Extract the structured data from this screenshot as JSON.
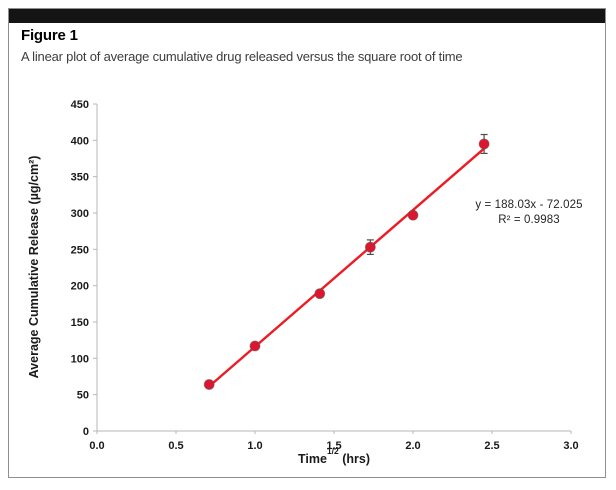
{
  "figure": {
    "label": "Figure 1",
    "caption": "A linear plot of average cumulative drug released versus the square root of time"
  },
  "chart_data": {
    "type": "scatter",
    "title": "",
    "x": [
      0.71,
      1.0,
      1.41,
      1.73,
      2.0,
      2.45
    ],
    "y": [
      64,
      117,
      189,
      253,
      297,
      395
    ],
    "y_errors": [
      0,
      0,
      0,
      10,
      0,
      13
    ],
    "series_name": "Average cumulative drug released",
    "trendline": {
      "slope": 188.03,
      "intercept": -72.025,
      "x_start": 0.7,
      "x_end": 2.46
    },
    "equation_line1": "y = 188.03x - 72.025",
    "equation_line2": "R² = 0.9983",
    "xlabel": {
      "pre": "Time",
      "sup": "1/2",
      "post": " (hrs)"
    },
    "ylabel": "Average Cumulative Release (µg/cm²)",
    "xlim": [
      0,
      3.0
    ],
    "ylim": [
      0,
      450
    ],
    "x_ticks": [
      "0.0",
      "0.5",
      "1.0",
      "1.5",
      "2.0",
      "2.5",
      "3.0"
    ],
    "y_ticks": [
      "0",
      "50",
      "100",
      "150",
      "200",
      "250",
      "300",
      "350",
      "400",
      "450"
    ],
    "grid": false,
    "legend": "none",
    "colors": {
      "trendline": "#ed1c24",
      "marker": "#dc162e",
      "marker_edge": "#555555",
      "error_bar": "#4d4d4d",
      "axis_line": "#b7b7b7",
      "tick_label": "#1a1a1a",
      "header_bar": "#141414"
    }
  }
}
